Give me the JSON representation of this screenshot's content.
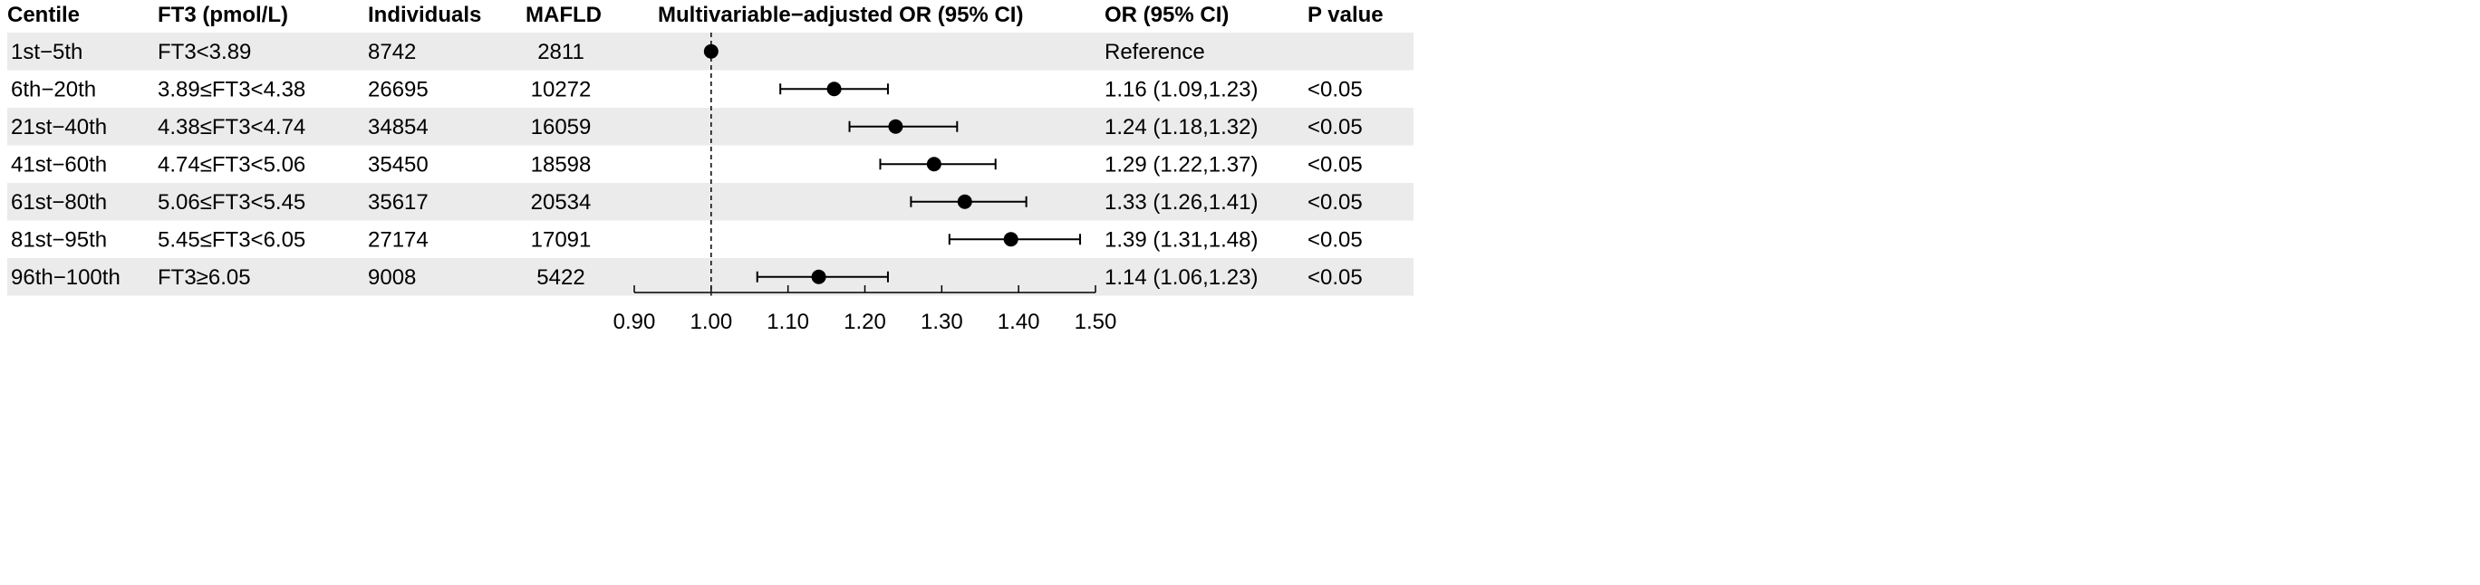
{
  "chart_data": {
    "type": "forest",
    "columns": {
      "centile": "Centile",
      "ft3": "FT3 (pmol/L)",
      "individuals": "Individuals",
      "mafld": "MAFLD",
      "plot": "Multivariable−adjusted OR (95% CI)",
      "or_ci": "OR (95% CI)",
      "p": "P value"
    },
    "rows": [
      {
        "centile": "1st−5th",
        "ft3": "FT3<3.89",
        "individuals": "8742",
        "mafld": "2811",
        "or": 1.0,
        "lo": null,
        "hi": null,
        "or_ci": "Reference",
        "p": ""
      },
      {
        "centile": "6th−20th",
        "ft3": "3.89≤FT3<4.38",
        "individuals": "26695",
        "mafld": "10272",
        "or": 1.16,
        "lo": 1.09,
        "hi": 1.23,
        "or_ci": "1.16 (1.09,1.23)",
        "p": "<0.05"
      },
      {
        "centile": "21st−40th",
        "ft3": "4.38≤FT3<4.74",
        "individuals": "34854",
        "mafld": "16059",
        "or": 1.24,
        "lo": 1.18,
        "hi": 1.32,
        "or_ci": "1.24 (1.18,1.32)",
        "p": "<0.05"
      },
      {
        "centile": "41st−60th",
        "ft3": "4.74≤FT3<5.06",
        "individuals": "35450",
        "mafld": "18598",
        "or": 1.29,
        "lo": 1.22,
        "hi": 1.37,
        "or_ci": "1.29 (1.22,1.37)",
        "p": "<0.05"
      },
      {
        "centile": "61st−80th",
        "ft3": "5.06≤FT3<5.45",
        "individuals": "35617",
        "mafld": "20534",
        "or": 1.33,
        "lo": 1.26,
        "hi": 1.41,
        "or_ci": "1.33 (1.26,1.41)",
        "p": "<0.05"
      },
      {
        "centile": "81st−95th",
        "ft3": "5.45≤FT3<6.05",
        "individuals": "27174",
        "mafld": "17091",
        "or": 1.39,
        "lo": 1.31,
        "hi": 1.48,
        "or_ci": "1.39 (1.31,1.48)",
        "p": "<0.05"
      },
      {
        "centile": "96th−100th",
        "ft3": "FT3≥6.05",
        "individuals": "9008",
        "mafld": "5422",
        "or": 1.14,
        "lo": 1.06,
        "hi": 1.23,
        "or_ci": "1.14 (1.06,1.23)",
        "p": "<0.05"
      }
    ],
    "xticks": [
      "0.90",
      "1.00",
      "1.10",
      "1.20",
      "1.30",
      "1.40",
      "1.50"
    ],
    "xlim": [
      0.9,
      1.5
    ],
    "reference_line": 1.0,
    "colors": {
      "band": "#ebebeb",
      "line": "#000000",
      "point": "#000000"
    }
  }
}
